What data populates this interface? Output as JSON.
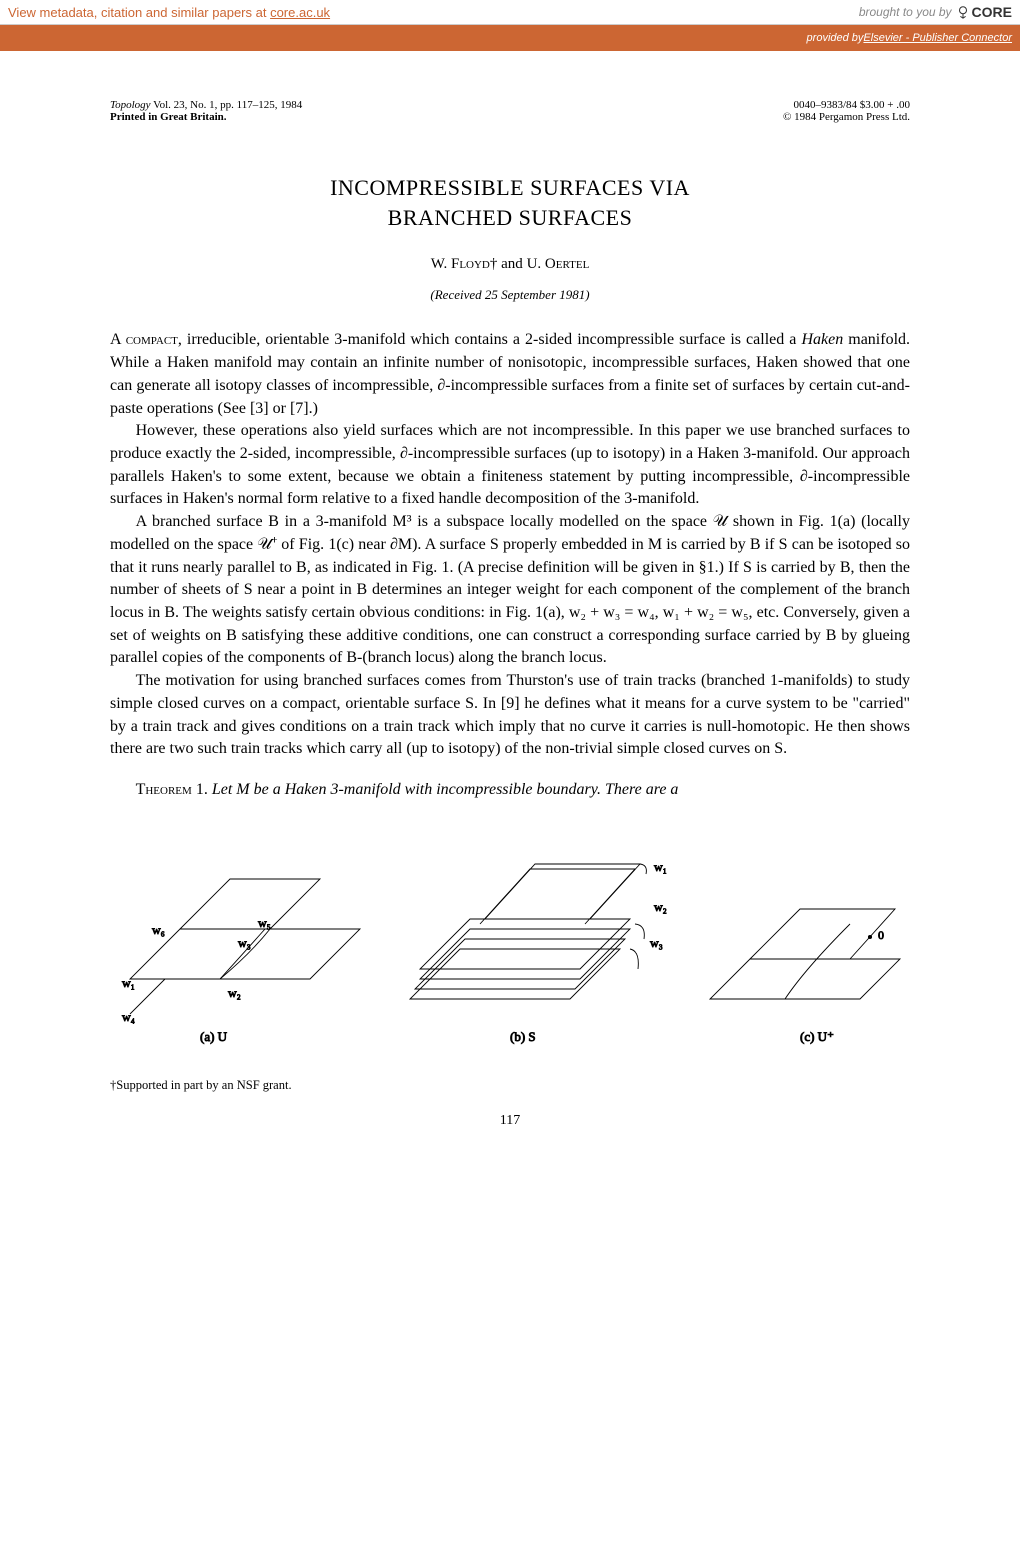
{
  "metadata_bar": {
    "left_prefix": "View metadata, citation and similar papers at ",
    "left_link": "core.ac.uk",
    "brought": "brought to you by",
    "core": "CORE"
  },
  "orange_bar": {
    "prefix": "provided by ",
    "link": "Elsevier - Publisher Connector"
  },
  "header": {
    "journal": "Topology",
    "volinfo": " Vol. 23, No. 1, pp. 117–125, 1984",
    "printed": "Printed in Great Britain.",
    "issn": "0040–9383/84   $3.00 + .00",
    "copyright": "© 1984 Pergamon Press Ltd."
  },
  "title_line1": "INCOMPRESSIBLE SURFACES VIA",
  "title_line2": "BRANCHED SURFACES",
  "authors": {
    "a1_initial": "W. ",
    "a1_surname": "Floyd",
    "dagger": "†",
    "and": "  and  ",
    "a2_initial": "U. ",
    "a2_surname": "Oertel"
  },
  "received": "(Received 25 September 1981)",
  "paragraphs": {
    "p1": "A compact, irreducible, orientable 3-manifold which contains a 2-sided incompressible surface is called a Haken manifold. While a Haken manifold may contain an infinite number of nonisotopic, incompressible surfaces, Haken showed that one can generate all isotopy classes of incompressible, ∂-incompressible surfaces from a finite set of surfaces by certain cut-and-paste operations (See [3] or [7].)",
    "p2": "However, these operations also yield surfaces which are not incompressible. In this paper we use branched surfaces to produce exactly the 2-sided, incompressible, ∂-incompressible surfaces (up to isotopy) in a Haken 3-manifold. Our approach parallels Haken's to some extent, because we obtain a finiteness statement by putting incompressible, ∂-incompressible surfaces in Haken's normal form relative to a fixed handle decomposition of the 3-manifold.",
    "p3": "A branched surface B in a 3-manifold M³ is a subspace locally modelled on the space 𝒰 shown in Fig. 1(a) (locally modelled on the space 𝒰⁺ of Fig. 1(c) near ∂M). A surface S properly embedded in M is carried by B if S can be isotoped so that it runs nearly parallel to B, as indicated in Fig. 1. (A precise definition will be given in §1.) If S is carried by B, then the number of sheets of S near a point in B determines an integer weight for each component of the complement of the branch locus in B. The weights satisfy certain obvious conditions: in Fig. 1(a), w₂ + w₃ = w₄, w₁ + w₂ = w₅, etc. Conversely, given a set of weights on B satisfying these additive conditions, one can construct a corresponding surface carried by B by glueing parallel copies of the components of B-(branch locus) along the branch locus.",
    "p4": "The motivation for using branched surfaces comes from Thurston's use of train tracks (branched 1-manifolds) to study simple closed curves on a compact, orientable surface S. In [9] he defines what it means for a curve system to be \"carried\" by a train track and gives conditions on a train track which imply that no curve it carries is null-homotopic. He then shows there are two such train tracks which carry all (up to isotopy) of the non-trivial simple closed curves on S."
  },
  "theorem": {
    "label": "Theorem",
    "num": " 1. ",
    "stmt": "Let M be a Haken 3-manifold with incompressible boundary. There are a"
  },
  "figure": {
    "labels": {
      "a": "(a) U",
      "b": "(b) S",
      "c": "(c) U⁺"
    },
    "weights": {
      "w1a": "w₁",
      "w2a": "w₂",
      "w3a": "w₃",
      "w4a": "w₄",
      "w5a": "w₅",
      "w6a": "w₆",
      "w1b": "w₁",
      "w2b": "w₂",
      "w3b": "w₃",
      "zero": "0"
    },
    "stroke": "#000000",
    "stroke_width": 0.9
  },
  "footnote": "†Supported in part by an NSF grant.",
  "page_number": "117",
  "colors": {
    "metadata_text": "#cc6633",
    "orange_bar_bg": "#cc6633",
    "orange_bar_text": "#ffffff",
    "body_text": "#000000",
    "background": "#ffffff"
  }
}
